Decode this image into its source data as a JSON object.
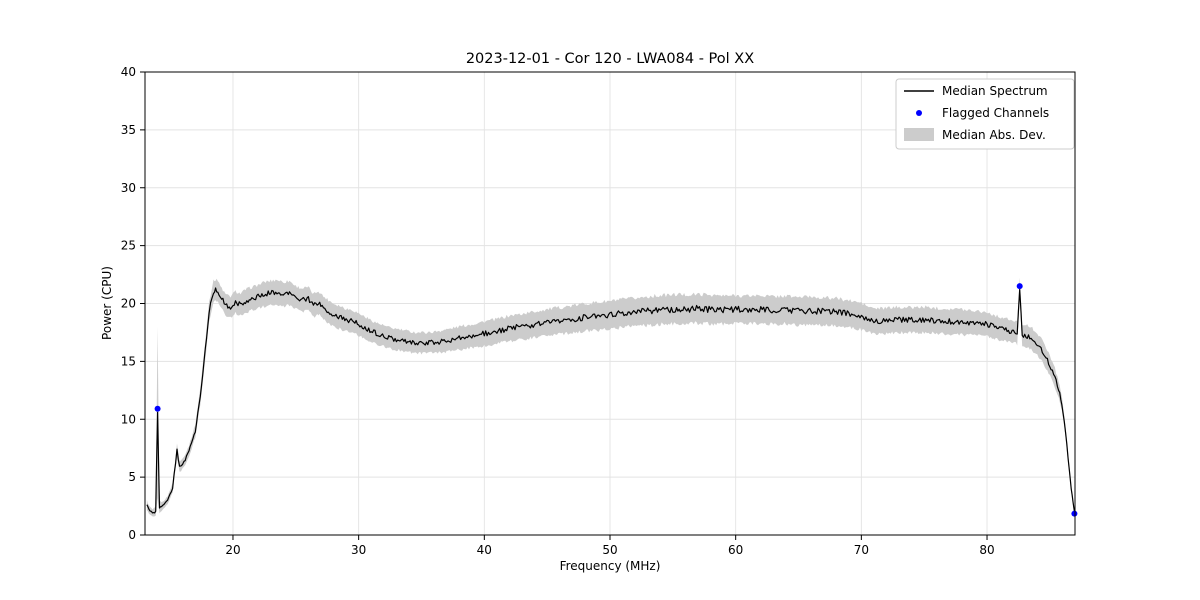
{
  "figure": {
    "title": "2023-12-01 - Cor 120 - LWA084 - Pol XX"
  },
  "chart_data": {
    "type": "line",
    "title": "2023-12-01 - Cor 120 - LWA084 - Pol XX",
    "xlabel": "Frequency (MHz)",
    "ylabel": "Power (CPU)",
    "xlim": [
      13,
      87
    ],
    "ylim": [
      0,
      40
    ],
    "xticks": [
      20,
      30,
      40,
      50,
      60,
      70,
      80
    ],
    "yticks": [
      0,
      5,
      10,
      15,
      20,
      25,
      30,
      35,
      40
    ],
    "grid": true,
    "colors": {
      "line": "#000000",
      "band": "#cccccc",
      "marker": "#0000ff",
      "grid": "#e3e3e3",
      "spine": "#000000",
      "legend_edge": "#cccccc"
    },
    "legend": {
      "position": "upper right",
      "entries": [
        {
          "label": "Median Spectrum",
          "type": "line",
          "color": "#000000"
        },
        {
          "label": "Flagged Channels",
          "type": "marker",
          "color": "#0000ff"
        },
        {
          "label": "Median Abs. Dev.",
          "type": "patch",
          "color": "#cccccc"
        }
      ]
    },
    "x": [
      13.15,
      13.3,
      13.6,
      13.85,
      14.0,
      14.15,
      14.4,
      14.8,
      15.2,
      15.55,
      15.75,
      16.1,
      16.5,
      17.0,
      17.4,
      17.8,
      18.1,
      18.45,
      18.7,
      19.0,
      19.4,
      19.8,
      20.2,
      20.6,
      21.0,
      21.5,
      22.0,
      22.5,
      23.0,
      23.5,
      24.0,
      24.5,
      25.0,
      25.5,
      26.0,
      26.4,
      26.8,
      27.2,
      27.6,
      28.0,
      28.5,
      29.0,
      29.5,
      30.0,
      30.5,
      31.0,
      31.5,
      32.0,
      32.5,
      33.0,
      33.5,
      34.0,
      34.5,
      35.0,
      35.5,
      36.0,
      36.5,
      37.0,
      38.0,
      39.0,
      40.0,
      41.0,
      42.0,
      43.0,
      44.0,
      45.0,
      46.0,
      47.0,
      48.0,
      49.0,
      50.0,
      51.0,
      52.0,
      53.0,
      54.0,
      55.0,
      55.5,
      56.0,
      57.0,
      58.0,
      59.0,
      60.0,
      61.0,
      62.0,
      63.0,
      64.0,
      65.0,
      66.0,
      67.0,
      68.0,
      69.0,
      70.0,
      70.6,
      71.2,
      72.0,
      73.0,
      74.0,
      75.0,
      76.0,
      77.0,
      78.0,
      79.0,
      80.0,
      80.5,
      81.0,
      81.5,
      82.0,
      82.4,
      82.6,
      82.8,
      83.2,
      83.6,
      84.0,
      84.4,
      84.8,
      85.1,
      85.4,
      85.7,
      85.95,
      86.15,
      86.35,
      86.55,
      86.7,
      86.85,
      86.95
    ],
    "series": [
      {
        "name": "Median Spectrum",
        "type": "line",
        "color": "#000000",
        "values": [
          2.6,
          2.2,
          1.9,
          2.0,
          10.6,
          2.4,
          2.5,
          3.0,
          4.1,
          7.3,
          5.9,
          6.3,
          7.2,
          9.0,
          12.0,
          16.0,
          19.3,
          21.0,
          21.2,
          20.6,
          19.9,
          19.7,
          20.1,
          19.9,
          20.2,
          20.4,
          20.6,
          20.8,
          20.9,
          21.0,
          20.8,
          20.9,
          20.5,
          20.3,
          20.4,
          19.8,
          20.1,
          19.6,
          19.3,
          19.0,
          18.8,
          18.6,
          18.5,
          18.2,
          17.9,
          17.6,
          17.4,
          17.2,
          17.0,
          16.9,
          16.8,
          16.7,
          16.6,
          16.6,
          16.6,
          16.65,
          16.7,
          16.8,
          17.0,
          17.2,
          17.4,
          17.6,
          17.85,
          18.0,
          18.2,
          18.35,
          18.5,
          18.65,
          18.8,
          18.9,
          19.0,
          19.15,
          19.25,
          19.35,
          19.45,
          19.5,
          19.55,
          19.5,
          19.55,
          19.5,
          19.45,
          19.5,
          19.45,
          19.5,
          19.4,
          19.45,
          19.35,
          19.4,
          19.3,
          19.25,
          19.1,
          18.9,
          18.6,
          18.45,
          18.5,
          18.6,
          18.55,
          18.6,
          18.5,
          18.45,
          18.4,
          18.35,
          18.2,
          18.0,
          17.85,
          17.7,
          17.55,
          17.45,
          21.3,
          17.3,
          17.15,
          16.9,
          16.5,
          15.9,
          15.1,
          14.4,
          13.6,
          12.6,
          11.4,
          9.8,
          7.8,
          5.6,
          4.0,
          2.8,
          2.0
        ]
      },
      {
        "name": "Median Abs. Dev.",
        "type": "band",
        "color": "#cccccc",
        "values": [
          0.4,
          0.35,
          0.3,
          0.4,
          7.4,
          0.5,
          0.35,
          0.35,
          0.4,
          0.6,
          0.5,
          0.45,
          0.5,
          0.55,
          0.7,
          0.8,
          0.9,
          0.95,
          0.95,
          0.9,
          0.9,
          0.9,
          0.95,
          0.95,
          1.0,
          1.0,
          1.0,
          1.05,
          1.05,
          1.05,
          1.05,
          1.05,
          1.0,
          1.0,
          1.0,
          1.0,
          1.0,
          1.0,
          1.0,
          1.0,
          1.0,
          0.95,
          0.95,
          0.95,
          0.95,
          0.95,
          0.9,
          0.9,
          0.9,
          0.9,
          0.9,
          0.9,
          0.9,
          0.9,
          0.9,
          0.9,
          0.95,
          0.95,
          1.0,
          1.0,
          1.05,
          1.05,
          1.1,
          1.1,
          1.1,
          1.15,
          1.15,
          1.15,
          1.2,
          1.2,
          1.2,
          1.2,
          1.2,
          1.25,
          1.25,
          1.25,
          1.25,
          1.25,
          1.25,
          1.25,
          1.2,
          1.2,
          1.2,
          1.2,
          1.2,
          1.2,
          1.2,
          1.2,
          1.2,
          1.2,
          1.15,
          1.15,
          1.1,
          1.1,
          1.1,
          1.1,
          1.1,
          1.1,
          1.1,
          1.1,
          1.1,
          1.05,
          1.05,
          1.0,
          1.0,
          1.0,
          0.95,
          0.95,
          0.95,
          0.95,
          0.95,
          0.95,
          0.95,
          0.9,
          0.9,
          0.85,
          0.8,
          0.7,
          0.6,
          0.5,
          0.45,
          0.4,
          0.3,
          0.25,
          0.2
        ]
      },
      {
        "name": "Flagged Channels",
        "type": "scatter",
        "color": "#0000ff",
        "points": [
          [
            14.0,
            10.9
          ],
          [
            82.6,
            21.5
          ],
          [
            86.95,
            1.85
          ]
        ]
      }
    ]
  }
}
